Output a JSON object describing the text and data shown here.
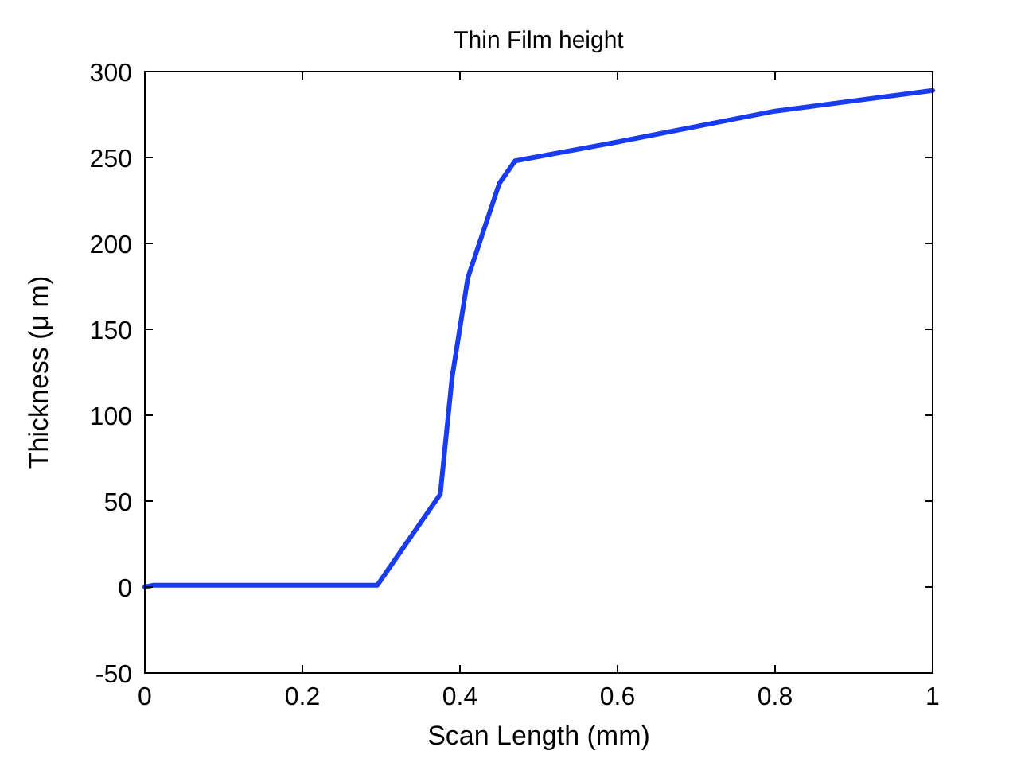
{
  "chart_data": {
    "type": "line",
    "title": "Thin Film height",
    "xlabel": "Scan Length (mm)",
    "ylabel": "Thickness (μ m)",
    "xlim": [
      0,
      1
    ],
    "xticks": [
      0,
      0.2,
      0.4,
      0.6,
      0.8,
      1
    ],
    "ylim": [
      -50,
      300
    ],
    "yticks": [
      -50,
      0,
      50,
      100,
      150,
      200,
      250,
      300
    ],
    "grid": false,
    "marker": "none",
    "line_style": "solid",
    "series": [
      {
        "color": "#1a3cf0",
        "x": [
          0,
          0.01,
          0.295,
          0.375,
          0.39,
          0.41,
          0.45,
          0.47,
          0.6,
          0.8,
          1
        ],
        "values": [
          0,
          1,
          1,
          54,
          122,
          180,
          235,
          248,
          259,
          277,
          289
        ]
      }
    ]
  }
}
